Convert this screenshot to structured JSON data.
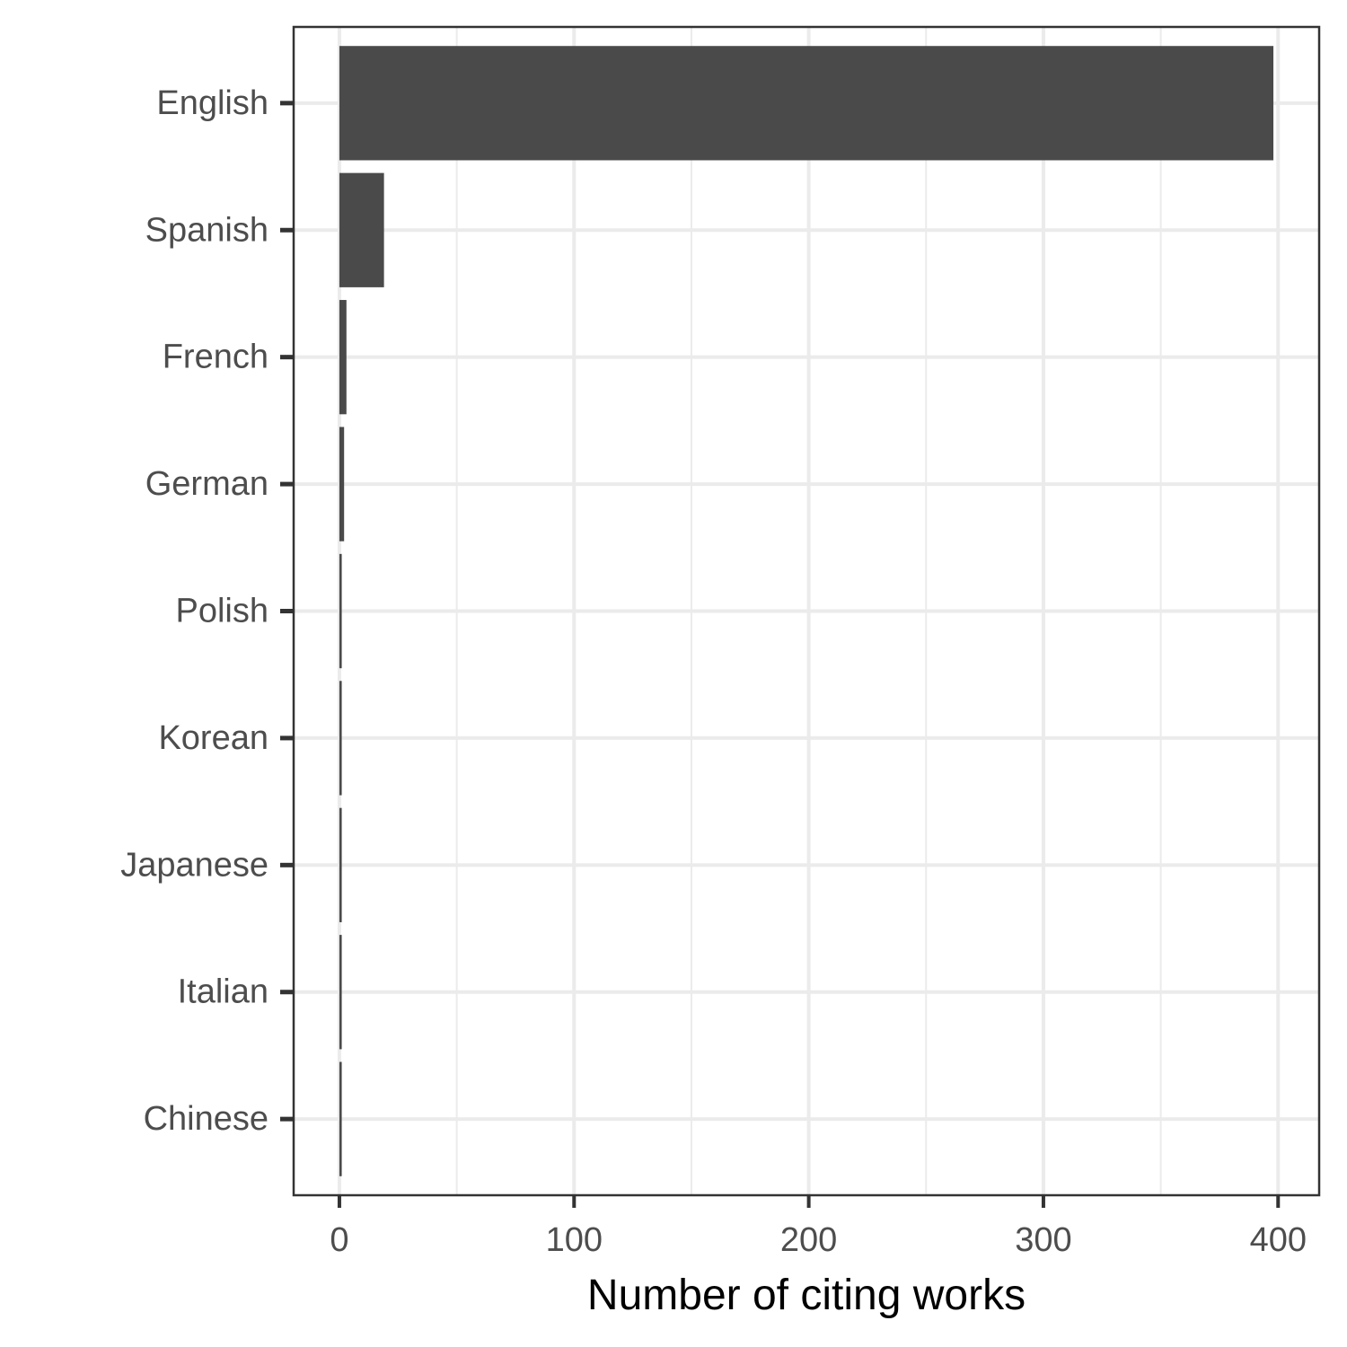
{
  "chart_data": {
    "type": "bar",
    "orientation": "horizontal",
    "categories": [
      "English",
      "Spanish",
      "French",
      "German",
      "Polish",
      "Korean",
      "Japanese",
      "Italian",
      "Chinese"
    ],
    "values": [
      398,
      19,
      3,
      2,
      1,
      1,
      1,
      1,
      1
    ],
    "title": "",
    "xlabel": "Number of citing works",
    "ylabel": "",
    "xlim": [
      -19.5,
      417.5
    ],
    "xticks": [
      0,
      100,
      200,
      300,
      400
    ],
    "grid": true,
    "bar_color": "#4a4a4a",
    "grid_color": "#ebebeb",
    "panel_border_color": "#333333"
  }
}
